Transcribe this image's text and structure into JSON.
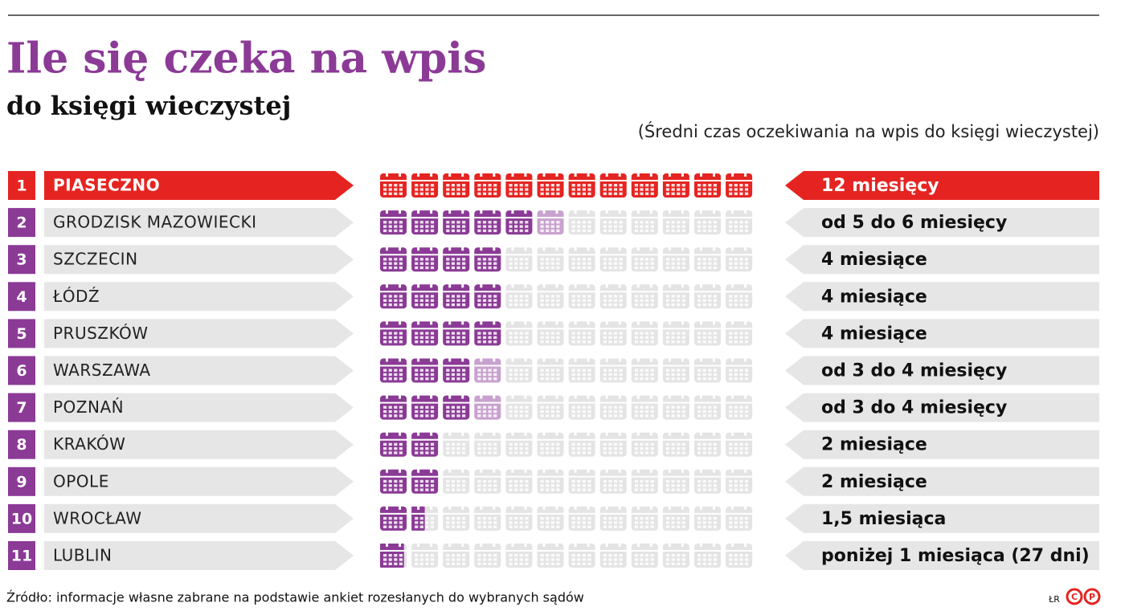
{
  "chart_data": {
    "type": "pictogram",
    "title": "Ile się czeka na wpis",
    "subtitle": "do księgi wieczystej",
    "note": "(Średni czas oczekiwania na wpis do księgi wieczystej)",
    "ranks": [
      1,
      2,
      3,
      4,
      5,
      6,
      7,
      8,
      9,
      10,
      11
    ],
    "categories": [
      "PIASECZNO",
      "GRODZISK MAZOWIECKI",
      "SZCZECIN",
      "ŁÓDŹ",
      "PRUSZKÓW",
      "WARSZAWA",
      "POZNAŃ",
      "KRAKÓW",
      "OPOLE",
      "WROCŁAW",
      "LUBLIN"
    ],
    "low": [
      12,
      5,
      4,
      4,
      4,
      3,
      3,
      2,
      2,
      1.5,
      0.9
    ],
    "high": [
      12,
      6,
      4,
      4,
      4,
      4,
      4,
      2,
      2,
      1.5,
      0.9
    ],
    "value_labels": [
      "12 miesięcy",
      "od 5 do 6 miesięcy",
      "4 miesiące",
      "4 miesiące",
      "4 miesiące",
      "od 3 do 4 miesięcy",
      "od 3 do 4 miesięcy",
      "2 miesiące",
      "2 miesiące",
      "1,5 miesiąca",
      "poniżej 1 miesiąca (27 dni)"
    ],
    "xlim": [
      0,
      12
    ],
    "color": "#8b3a96",
    "range_color": "#c8a2ce",
    "empty_color": "#e4e4e4",
    "highlight_index": 0,
    "highlight_color": "#e52421",
    "source": "Źródło: informacje własne zabrane na podstawie ankiet rozesłanych do wybranych sądów",
    "credit": "ŁR",
    "logo_letters": [
      "C",
      "P"
    ]
  }
}
